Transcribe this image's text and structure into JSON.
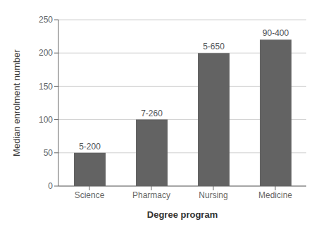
{
  "chart_data": {
    "type": "bar",
    "categories": [
      "Science",
      "Pharmacy",
      "Nursing",
      "Medicine"
    ],
    "values": [
      50,
      100,
      200,
      220
    ],
    "annotations": [
      "5-200",
      "7-260",
      "5-650",
      "90-400"
    ],
    "color": "#636363",
    "xlabel": "Degree program",
    "ylabel": "Median enrolment number",
    "ylim": [
      0,
      250
    ],
    "yticks": [
      0,
      50,
      100,
      150,
      200,
      250
    ],
    "grid": true
  }
}
